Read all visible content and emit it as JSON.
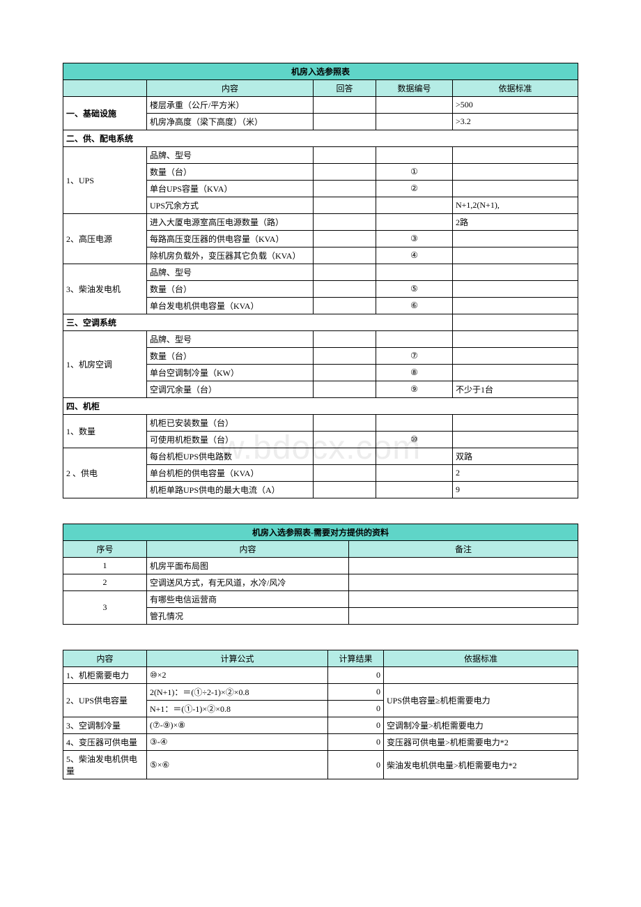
{
  "colors": {
    "title_bg": "#5fd5c8",
    "header_bg": "#b5ece5",
    "border": "#000000",
    "text": "#000000",
    "watermark": "#ededed"
  },
  "watermark_text": "w.bdocx.com",
  "table1": {
    "title": "机房入选参照表",
    "headers": {
      "content": "内容",
      "answer": "回答",
      "data_id": "数据编号",
      "standard": "依据标准"
    },
    "section1": {
      "label": "一、基础设施",
      "rows": [
        {
          "content": "楼层承重（公斤/平方米）",
          "answer": "",
          "id": "",
          "std": ">500"
        },
        {
          "content": "机房净高度（梁下高度）（米）",
          "answer": "",
          "id": "",
          "std": ">3.2"
        }
      ]
    },
    "section2": {
      "label": "二、供、配电系统",
      "group1": {
        "label": "1、UPS",
        "rows": [
          {
            "content": "品牌、型号",
            "answer": "",
            "id": "",
            "std": ""
          },
          {
            "content": "数量（台）",
            "answer": "",
            "id": "①",
            "std": ""
          },
          {
            "content": "单台UPS容量（KVA）",
            "answer": "",
            "id": "②",
            "std": ""
          },
          {
            "content": "UPS冗余方式",
            "answer": "",
            "id": "",
            "std": "N+1,2(N+1),"
          }
        ]
      },
      "group2": {
        "label": "2、高压电源",
        "rows": [
          {
            "content": "进入大厦电源室高压电源数量（路）",
            "answer": "",
            "id": "",
            "std": "2路"
          },
          {
            "content": "每路高压变压器的供电容量（KVA）",
            "answer": "",
            "id": "③",
            "std": ""
          },
          {
            "content": "除机房负载外，变压器其它负载（KVA）",
            "answer": "",
            "id": "④",
            "std": ""
          }
        ]
      },
      "group3": {
        "label": "3、柴油发电机",
        "rows": [
          {
            "content": "品牌、型号",
            "answer": "",
            "id": "",
            "std": ""
          },
          {
            "content": "数量（台）",
            "answer": "",
            "id": "⑤",
            "std": ""
          },
          {
            "content": "单台发电机供电容量（KVA）",
            "answer": "",
            "id": "⑥",
            "std": ""
          }
        ]
      }
    },
    "section3": {
      "label": "三、空调系统",
      "group1": {
        "label": "1、机房空调",
        "rows": [
          {
            "content": "品牌、型号",
            "answer": "",
            "id": "",
            "std": ""
          },
          {
            "content": "数量（台）",
            "answer": "",
            "id": "⑦",
            "std": ""
          },
          {
            "content": "单台空调制冷量（KW）",
            "answer": "",
            "id": "⑧",
            "std": ""
          },
          {
            "content": "空调冗余量（台）",
            "answer": "",
            "id": "⑨",
            "std": "不少于1台"
          }
        ]
      }
    },
    "section4": {
      "label": "四、机柜",
      "group1": {
        "label": "1、数量",
        "rows": [
          {
            "content": "机柜已安装数量（台）",
            "answer": "",
            "id": "",
            "std": ""
          },
          {
            "content": "可使用机柜数量（台）",
            "answer": "",
            "id": "⑩",
            "std": ""
          }
        ]
      },
      "group2": {
        "label": "2 、供电",
        "rows": [
          {
            "content": "每台机柜UPS供电路数",
            "answer": "",
            "id": "",
            "std": "双路"
          },
          {
            "content": "单台机柜的供电容量（KVA）",
            "answer": "",
            "id": "",
            "std": "2"
          },
          {
            "content": "机柜单路UPS供电的最大电流（A）",
            "answer": "",
            "id": "",
            "std": "9"
          }
        ]
      }
    }
  },
  "table2": {
    "title": "机房入选参照表-需要对方提供的资料",
    "headers": {
      "seq": "序号",
      "content": "内容",
      "remark": "备注"
    },
    "rows": [
      {
        "seq": "1",
        "content": "机房平面布局图",
        "remark": ""
      },
      {
        "seq": "2",
        "content": "空调送风方式，有无风道，水冷/风冷",
        "remark": ""
      }
    ],
    "row3": {
      "seq": "3",
      "sub": [
        {
          "content": "有哪些电信运营商",
          "remark": ""
        },
        {
          "content": "管孔情况",
          "remark": ""
        }
      ]
    }
  },
  "table3": {
    "headers": {
      "content": "内容",
      "formula": "计算公式",
      "result": "计算结果",
      "standard": "依据标准"
    },
    "rows": [
      {
        "content": "1、机柜需要电力",
        "formula": "⑩×2",
        "result": "0",
        "std": ""
      }
    ],
    "row2": {
      "content": "2、UPS供电容量",
      "sub": [
        {
          "formula": "2(N+1)：＝(①÷2-1)×②×0.8",
          "result": "0"
        },
        {
          "formula": "N+1：＝(①-1)×②×0.8",
          "result": "0"
        }
      ],
      "std": "UPS供电容量≥机柜需要电力"
    },
    "rows2": [
      {
        "content": "3、空调制冷量",
        "formula": "(⑦-⑨)×⑧",
        "result": "0",
        "std": "空调制冷量>机柜需要电力"
      },
      {
        "content": "4、变压器可供电量",
        "formula": "③-④",
        "result": "0",
        "std": "变压器可供电量>机柜需要电力*2"
      },
      {
        "content": "5、柴油发电机供电量",
        "formula": "⑤×⑥",
        "result": "0",
        "std": "柴油发电机供电量>机柜需要电力*2"
      }
    ]
  }
}
